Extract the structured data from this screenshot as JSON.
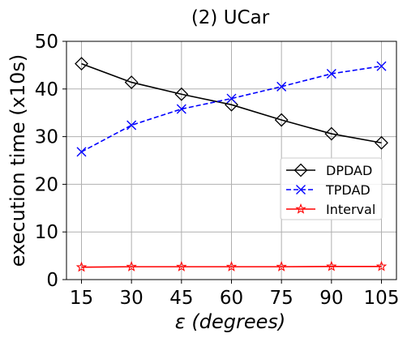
{
  "chart_data": {
    "type": "line",
    "title": "(2) UCar",
    "xlabel_symbol": "ε",
    "xlabel_unit": "(degrees)",
    "ylabel": "execution time (x10s)",
    "categories": [
      "15",
      "30",
      "45",
      "60",
      "75",
      "90",
      "105"
    ],
    "x": [
      15,
      30,
      45,
      60,
      75,
      90,
      105
    ],
    "ylim": [
      0,
      50
    ],
    "yticks": [
      "0",
      "10",
      "20",
      "30",
      "40",
      "50"
    ],
    "ytick_values": [
      0,
      10,
      20,
      30,
      40,
      50
    ],
    "grid": true,
    "legend_position": "center-right",
    "series": [
      {
        "name": "DPDAD",
        "color": "#000000",
        "dash": "solid",
        "marker": "diamond",
        "values": [
          45.3,
          41.4,
          38.9,
          36.7,
          33.5,
          30.6,
          28.7
        ]
      },
      {
        "name": "TPDAD",
        "color": "#0000ff",
        "dash": "dashed",
        "marker": "x",
        "values": [
          26.8,
          32.4,
          35.8,
          38.0,
          40.5,
          43.2,
          44.8
        ]
      },
      {
        "name": "Interval",
        "color": "#ff0000",
        "dash": "solid",
        "marker": "star",
        "values": [
          2.6,
          2.7,
          2.7,
          2.7,
          2.7,
          2.75,
          2.75
        ]
      }
    ]
  }
}
